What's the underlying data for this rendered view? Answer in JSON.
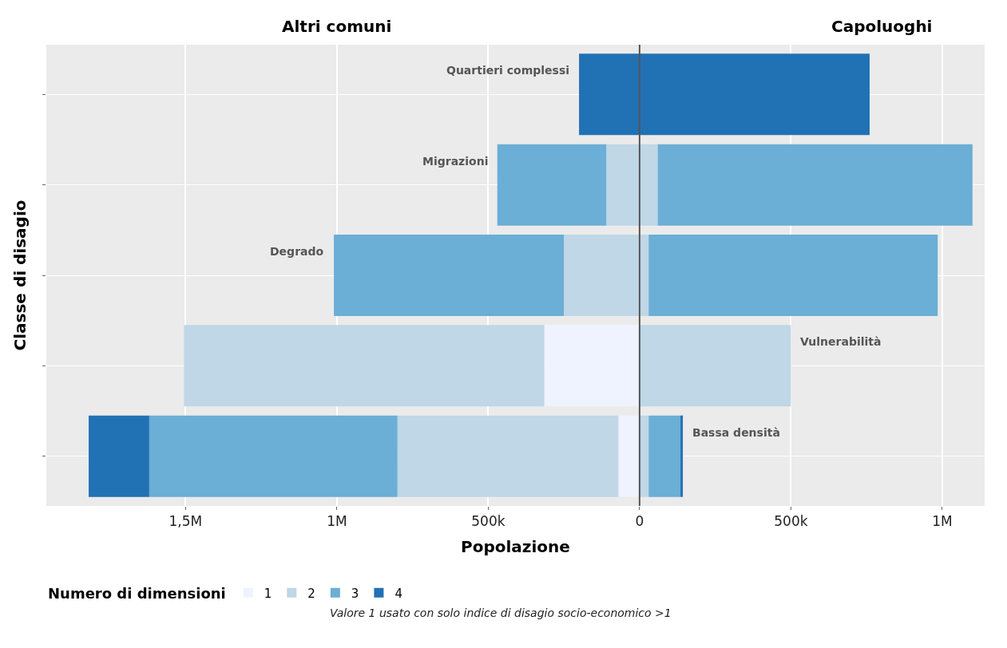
{
  "chart_data": {
    "type": "bar",
    "orientation": "horizontal",
    "stacked": true,
    "xlabel": "Popolazione",
    "ylabel": "Classe di disagio",
    "legend_title": "Numero di dimensioni",
    "categories": [
      "Quartieri complessi",
      "Migrazioni",
      "Degrado",
      "Vulnerabilità",
      "Bassa densità"
    ],
    "series": [
      {
        "name": "1",
        "color": "#eff3ff",
        "values": [
          null,
          null,
          null,
          -315000,
          -70000
        ]
      },
      {
        "name": "2",
        "color": "#bfd7e6",
        "values": [
          null,
          -110000,
          -250000,
          -1190000,
          -730000
        ]
      },
      {
        "name": "3",
        "color": "#6baed6",
        "values": [
          null,
          -360000,
          -760000,
          null,
          -820000
        ]
      },
      {
        "name": "4",
        "color": "#2171b5",
        "values": [
          -200000,
          null,
          null,
          null,
          -200000
        ]
      },
      {
        "color": "#bfd7e6",
        "values": [
          null,
          60000,
          30000,
          500000,
          30000
        ]
      },
      {
        "color": "#6baed6",
        "values": [
          null,
          1040000,
          955000,
          null,
          105000
        ]
      },
      {
        "color": "#2171b5",
        "values": [
          760000,
          null,
          null,
          null,
          8000
        ]
      }
    ],
    "xlim": [
      -1960000,
      1140000
    ],
    "xticks": [
      {
        "value": -1500000,
        "label": "1,5M"
      },
      {
        "value": -1000000,
        "label": "1M"
      },
      {
        "value": -500000,
        "label": "500k"
      },
      0,
      {
        "value": 500000,
        "label": "500k"
      },
      {
        "value": 1000000,
        "label": "1M"
      }
    ],
    "ref_lines": [
      {
        "axis": "x",
        "value": 0,
        "color": "#555555"
      }
    ],
    "annotations": [
      "Altri comuni",
      "Capoluoghi",
      "Valore 1 usato con solo indice di disagio socio-economico >1"
    ],
    "grid": true,
    "legend": "bottom left"
  }
}
